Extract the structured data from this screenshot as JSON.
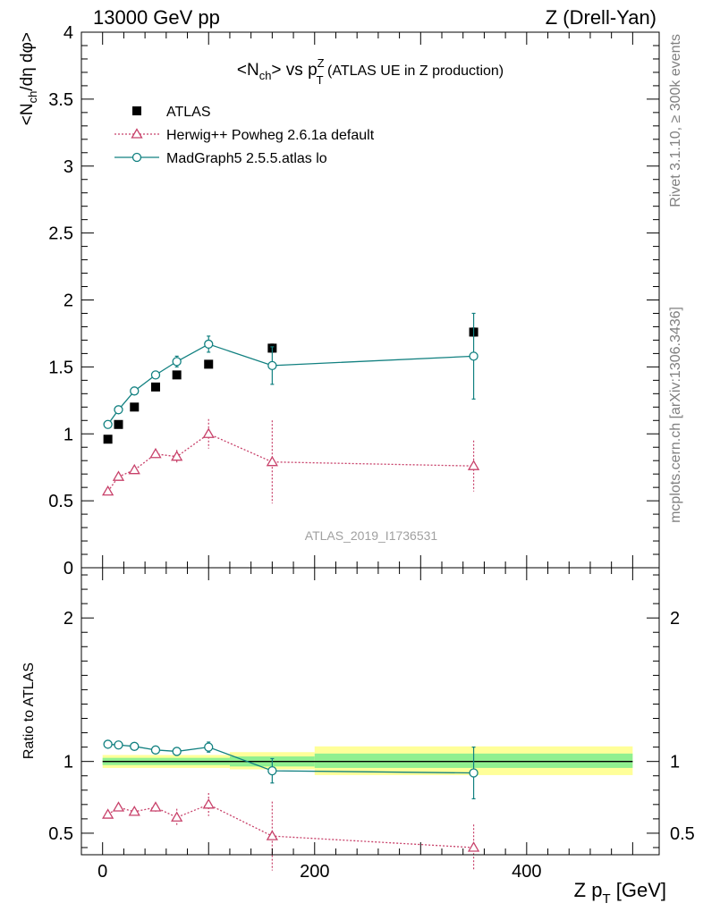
{
  "header": {
    "left": "13000 GeV pp",
    "right": "Z (Drell-Yan)"
  },
  "side_labels": {
    "rivet": "Rivet 3.1.10, ≥ 300k events",
    "mcplots": "mcplots.cern.ch [arXiv:1306.3436]"
  },
  "chart_data": [
    {
      "type": "scatter",
      "panel": "main",
      "title": {
        "pre": "<N",
        "sub1": "ch",
        "mid": "> vs p",
        "sup2": "Z",
        "sub2": "T",
        "post": " (ATLAS UE in Z production)"
      },
      "ylabel": {
        "pre": "<N",
        "sub": "ch",
        "post": "/dη dφ>"
      },
      "xlim": [
        -20,
        525
      ],
      "ylim": [
        0,
        4
      ],
      "yticks": [
        "0",
        "0.5",
        "1",
        "1.5",
        "2",
        "2.5",
        "3",
        "3.5",
        "4"
      ],
      "ytick_values": [
        0,
        0.5,
        1,
        1.5,
        2,
        2.5,
        3,
        3.5,
        4
      ],
      "analysis_label": "ATLAS_2019_I1736531",
      "series": [
        {
          "name": "ATLAS",
          "color": "#000000",
          "marker": "square",
          "x": [
            5,
            15,
            30,
            50,
            70,
            100,
            160,
            350
          ],
          "y": [
            0.96,
            1.07,
            1.2,
            1.35,
            1.44,
            1.52,
            1.64,
            1.76
          ],
          "err": [
            0.01,
            0.01,
            0.01,
            0.01,
            0.015,
            0.02,
            0.03,
            0.03
          ]
        },
        {
          "name": "Herwig++ Powheg 2.6.1a default",
          "color": "#c8416a",
          "marker": "triangle",
          "line": "dotted",
          "x": [
            5,
            15,
            30,
            50,
            70,
            100,
            160,
            350
          ],
          "y": [
            0.57,
            0.68,
            0.73,
            0.85,
            0.83,
            1.0,
            0.79,
            0.76
          ],
          "err": [
            0.015,
            0.02,
            0.025,
            0.03,
            0.05,
            0.11,
            0.31,
            0.19
          ]
        },
        {
          "name": "MadGraph5 2.5.5.atlas lo",
          "color": "#118080",
          "marker": "circle",
          "line": "solid",
          "x": [
            5,
            15,
            30,
            50,
            70,
            100,
            160,
            350
          ],
          "y": [
            1.07,
            1.18,
            1.32,
            1.44,
            1.54,
            1.67,
            1.51,
            1.58
          ],
          "err": [
            0.01,
            0.01,
            0.015,
            0.02,
            0.04,
            0.06,
            0.14,
            0.32
          ]
        }
      ]
    },
    {
      "type": "scatter",
      "panel": "ratio",
      "ylabel": "Ratio to ATLAS",
      "xlabel": {
        "pre": "Z p",
        "sub": "T",
        "post": " [GeV]"
      },
      "xlim": [
        -20,
        525
      ],
      "ylim": [
        0.35,
        2.35
      ],
      "xticks": [
        "0",
        "200",
        "400"
      ],
      "xtick_values": [
        0,
        200,
        400
      ],
      "yticks": [
        "0.5",
        "1",
        "2"
      ],
      "ytick_values": [
        0.5,
        1,
        2
      ],
      "bands": [
        {
          "x0": 0,
          "x1": 120,
          "inner": [
            0.975,
            1.025
          ],
          "outer": [
            0.955,
            1.045
          ]
        },
        {
          "x0": 120,
          "x1": 200,
          "inner": [
            0.965,
            1.035
          ],
          "outer": [
            0.945,
            1.065
          ]
        },
        {
          "x0": 200,
          "x1": 500,
          "inner": [
            0.955,
            1.055
          ],
          "outer": [
            0.905,
            1.105
          ]
        }
      ],
      "band_colors": {
        "inner": "#90f090",
        "outer": "#ffff99"
      },
      "series": [
        {
          "name": "Herwig++ Powheg 2.6.1a default",
          "color": "#c8416a",
          "marker": "triangle",
          "line": "dotted",
          "x": [
            5,
            15,
            30,
            50,
            70,
            100,
            160,
            350
          ],
          "y": [
            0.63,
            0.68,
            0.65,
            0.68,
            0.61,
            0.7,
            0.48,
            0.4
          ],
          "err": [
            0.01,
            0.015,
            0.02,
            0.03,
            0.06,
            0.08,
            0.24,
            0.16
          ]
        },
        {
          "name": "MadGraph5 2.5.5.atlas lo",
          "color": "#118080",
          "marker": "circle",
          "line": "solid",
          "x": [
            5,
            15,
            30,
            50,
            70,
            100,
            160,
            350
          ],
          "y": [
            1.12,
            1.115,
            1.105,
            1.08,
            1.07,
            1.1,
            0.935,
            0.92
          ],
          "err": [
            0.008,
            0.01,
            0.012,
            0.015,
            0.025,
            0.035,
            0.085,
            0.18
          ]
        }
      ]
    }
  ]
}
